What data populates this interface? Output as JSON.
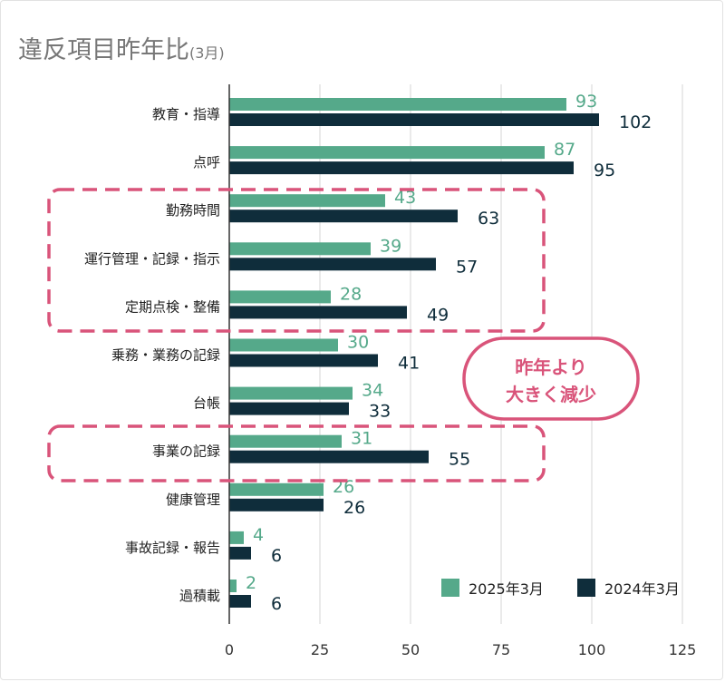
{
  "title": "違反項目昨年比",
  "title_sub": "(3月)",
  "colors": {
    "series_2025": "#55a98a",
    "series_2024": "#0f2d3b",
    "highlight": "#d9547a",
    "grid": "#d4d4d4",
    "axis": "#333333"
  },
  "chart_data": {
    "type": "bar",
    "orientation": "horizontal",
    "categories": [
      "教育・指導",
      "点呼",
      "勤務時間",
      "運行管理・記録・指示",
      "定期点検・整備",
      "乗務・業務の記録",
      "台帳",
      "事業の記録",
      "健康管理",
      "事故記録・報告",
      "過積載"
    ],
    "series": [
      {
        "name": "2025年3月",
        "values": [
          93,
          87,
          43,
          39,
          28,
          30,
          34,
          31,
          26,
          4,
          2
        ]
      },
      {
        "name": "2024年3月",
        "values": [
          102,
          95,
          63,
          57,
          49,
          41,
          33,
          55,
          26,
          6,
          6
        ]
      }
    ],
    "x_ticks": [
      0,
      25,
      50,
      75,
      100,
      125
    ],
    "xlim": [
      0,
      125
    ],
    "grid": "vertical",
    "legend": "bottom-right",
    "annotation": {
      "line1": "昨年より",
      "line2": "大きく減少"
    },
    "highlighted_groups": [
      [
        "勤務時間",
        "運行管理・記録・指示",
        "定期点検・整備"
      ],
      [
        "事業の記録"
      ]
    ]
  }
}
